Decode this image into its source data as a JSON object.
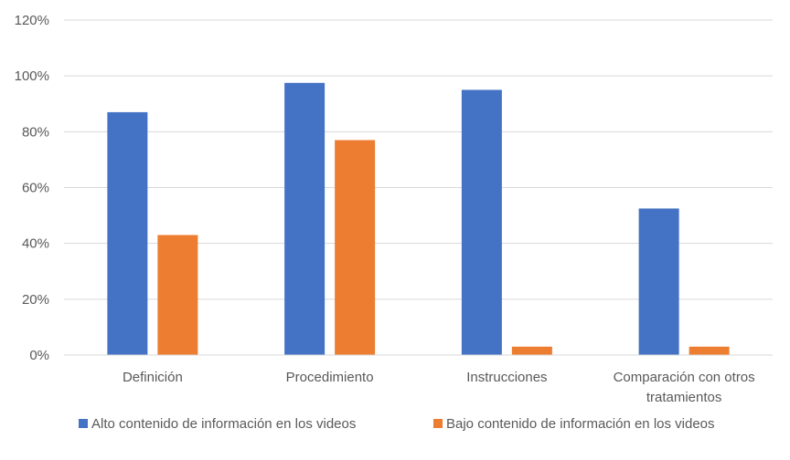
{
  "chart_data": {
    "type": "bar",
    "categories": [
      [
        "Definición"
      ],
      [
        "Procedimiento"
      ],
      [
        "Instrucciones"
      ],
      [
        "Comparación con otros",
        "tratamientos"
      ]
    ],
    "series": [
      {
        "name": "Alto contenido de información en los videos",
        "color": "#4472c4",
        "values": [
          87,
          97.5,
          95,
          52.5
        ]
      },
      {
        "name": "Bajo contenido de información en los videos",
        "color": "#ed7d31",
        "values": [
          43,
          77,
          3,
          3
        ]
      }
    ],
    "y_ticks": [
      "0%",
      "20%",
      "40%",
      "60%",
      "80%",
      "100%",
      "120%"
    ],
    "ylim": [
      0,
      120
    ],
    "grid": true,
    "legend_position": "bottom",
    "xlabel": "",
    "ylabel": "",
    "title": ""
  }
}
